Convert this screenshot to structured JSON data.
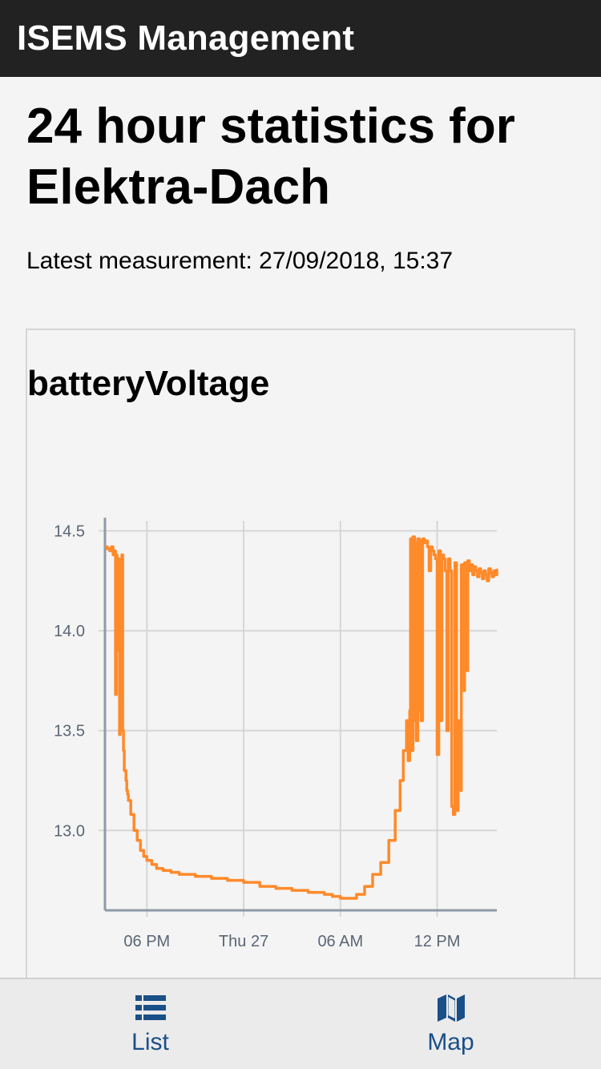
{
  "header": {
    "title": "ISEMS Management"
  },
  "page": {
    "title": "24 hour statistics for Elektra-Dach",
    "latest_measurement": "Latest measurement: 27/09/2018, 15:37"
  },
  "chart_data": {
    "type": "line",
    "title": "batteryVoltage",
    "xlabel": "",
    "ylabel": "",
    "x_tick_labels": [
      "06 PM",
      "Thu 27",
      "06 AM",
      "12 PM"
    ],
    "x_tick_hours": [
      18,
      24,
      30,
      36
    ],
    "y_ticks": [
      13.0,
      13.5,
      14.0,
      14.5
    ],
    "y_tick_labels": [
      "13.0",
      "13.5",
      "14.0",
      "14.5"
    ],
    "xlim_hours": [
      15.4,
      39.7
    ],
    "ylim": [
      12.6,
      14.55
    ],
    "grid": true,
    "color": "#ff8a2a",
    "series": [
      {
        "x_hours": [
          15.4,
          15.55,
          15.7,
          15.8,
          15.9,
          16.0,
          16.05,
          16.1,
          16.15,
          16.25,
          16.3,
          16.35,
          16.45,
          16.5,
          16.55,
          16.6,
          16.7,
          16.75,
          16.8,
          16.85,
          17.0,
          17.2,
          17.4,
          17.6,
          17.8,
          18.0,
          18.3,
          18.6,
          19.0,
          19.5,
          20.0,
          21.0,
          22.0,
          23.0,
          24.0,
          25.0,
          26.0,
          27.0,
          28.0,
          29.0,
          29.5,
          30.0,
          30.5,
          31.0,
          31.5,
          32.0,
          32.5,
          33.0,
          33.4,
          33.7,
          33.9,
          34.1,
          34.2,
          34.3,
          34.35,
          34.45,
          34.5,
          34.6,
          34.65,
          34.7,
          34.8,
          34.9,
          34.95,
          35.0,
          35.1,
          35.2,
          35.3,
          35.4,
          35.5,
          35.6,
          35.7,
          35.8,
          35.9,
          36.0,
          36.1,
          36.2,
          36.3,
          36.4,
          36.5,
          36.6,
          36.7,
          36.8,
          36.9,
          37.0,
          37.1,
          37.2,
          37.3,
          37.4,
          37.5,
          37.6,
          37.7,
          37.8,
          37.9,
          38.0,
          38.1,
          38.2,
          38.3,
          38.4,
          38.5,
          38.6,
          38.7,
          38.8,
          38.9,
          39.0,
          39.1,
          39.2,
          39.3,
          39.4,
          39.5,
          39.6,
          39.7
        ],
        "values": [
          14.42,
          14.41,
          14.4,
          14.42,
          14.38,
          14.4,
          13.68,
          14.38,
          13.9,
          14.36,
          13.48,
          14.3,
          14.38,
          13.5,
          13.4,
          13.3,
          13.25,
          13.2,
          13.18,
          13.15,
          13.08,
          13.0,
          12.95,
          12.9,
          12.87,
          12.85,
          12.83,
          12.81,
          12.8,
          12.79,
          12.78,
          12.77,
          12.76,
          12.75,
          12.74,
          12.72,
          12.71,
          12.7,
          12.69,
          12.68,
          12.67,
          12.66,
          12.66,
          12.68,
          12.72,
          12.78,
          12.84,
          12.95,
          13.1,
          13.25,
          13.4,
          13.55,
          13.35,
          13.6,
          14.46,
          13.4,
          14.47,
          13.55,
          14.44,
          13.45,
          14.46,
          13.6,
          14.45,
          13.55,
          14.46,
          14.44,
          14.45,
          14.42,
          14.3,
          14.42,
          14.4,
          14.38,
          14.36,
          13.38,
          14.4,
          13.55,
          14.38,
          14.36,
          14.3,
          13.5,
          14.36,
          14.3,
          13.12,
          13.08,
          14.34,
          13.1,
          13.55,
          13.2,
          14.33,
          13.7,
          14.34,
          13.8,
          14.35,
          14.3,
          14.33,
          14.28,
          14.32,
          14.3,
          14.27,
          14.31,
          14.29,
          14.26,
          14.3,
          14.28,
          14.25,
          14.31,
          14.29,
          14.27,
          14.3,
          14.28,
          14.31
        ]
      }
    ]
  },
  "tabs": [
    {
      "label": "List",
      "icon": "list-icon"
    },
    {
      "label": "Map",
      "icon": "map-icon"
    }
  ],
  "colors": {
    "header_bg": "#222222",
    "accent": "#1a4f88",
    "line": "#ff8a2a",
    "grid": "#d6d6d6",
    "axis": "#8e9aa6"
  }
}
